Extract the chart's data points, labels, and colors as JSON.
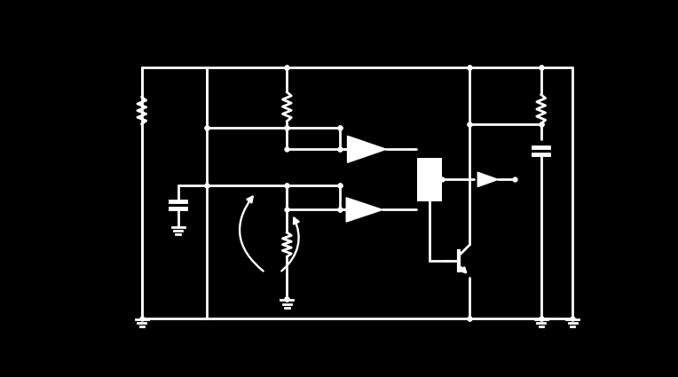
{
  "bg_color": "#000000",
  "line_color": "#ffffff",
  "lw": 2.0,
  "fig_width": 7.64,
  "fig_height": 4.25,
  "dpi": 100,
  "xlim": [
    0,
    10
  ],
  "ylim": [
    0,
    6
  ]
}
